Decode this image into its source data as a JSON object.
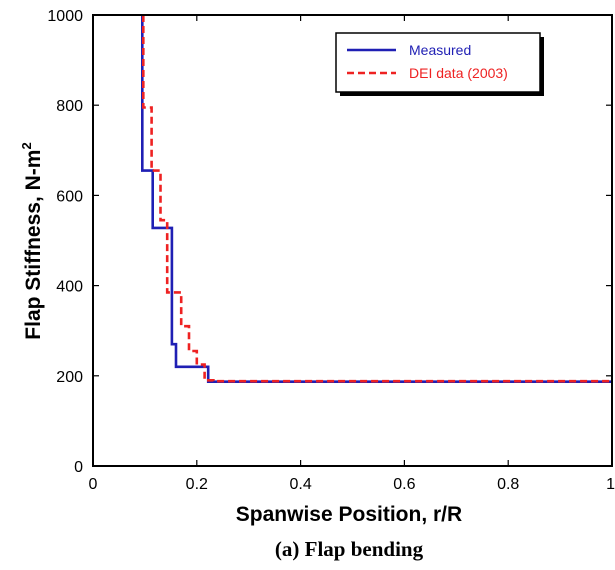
{
  "chart_data": {
    "type": "line",
    "step": true,
    "xlabel": "Spanwise Position, r/R",
    "ylabel": "Flap Stiffness, N-m",
    "ylabel_superscript": "2",
    "caption": "(a) Flap bending",
    "xlim": [
      0,
      1
    ],
    "ylim": [
      0,
      1000
    ],
    "xticks": [
      0,
      0.2,
      0.4,
      0.6,
      0.8,
      1
    ],
    "xtick_labels": [
      "0",
      "0.2",
      "0.4",
      "0.6",
      "0.8",
      "1"
    ],
    "yticks": [
      0,
      200,
      400,
      600,
      800,
      1000
    ],
    "ytick_labels": [
      "0",
      "200",
      "400",
      "600",
      "800",
      "1000"
    ],
    "grid": false,
    "legend_position": "top-right",
    "series": [
      {
        "name": "Measured",
        "color": "#1f1fb4",
        "dash": "solid",
        "x": [
          0.095,
          0.095,
          0.115,
          0.115,
          0.152,
          0.152,
          0.16,
          0.16,
          0.175,
          0.175,
          0.222,
          0.222,
          1.0
        ],
        "y": [
          1000,
          655,
          655,
          528,
          528,
          270,
          270,
          220,
          220,
          220,
          220,
          187,
          187
        ]
      },
      {
        "name": "DEI data (2003)",
        "color": "#ee2222",
        "dash": "dashed",
        "x": [
          0.097,
          0.097,
          0.113,
          0.113,
          0.13,
          0.13,
          0.143,
          0.143,
          0.155,
          0.155,
          0.17,
          0.17,
          0.185,
          0.185,
          0.2,
          0.2,
          0.215,
          0.215,
          0.232,
          0.232,
          1.0
        ],
        "y": [
          1000,
          795,
          795,
          655,
          655,
          545,
          545,
          385,
          385,
          385,
          385,
          310,
          310,
          255,
          255,
          225,
          225,
          190,
          190,
          188,
          188
        ]
      }
    ]
  }
}
